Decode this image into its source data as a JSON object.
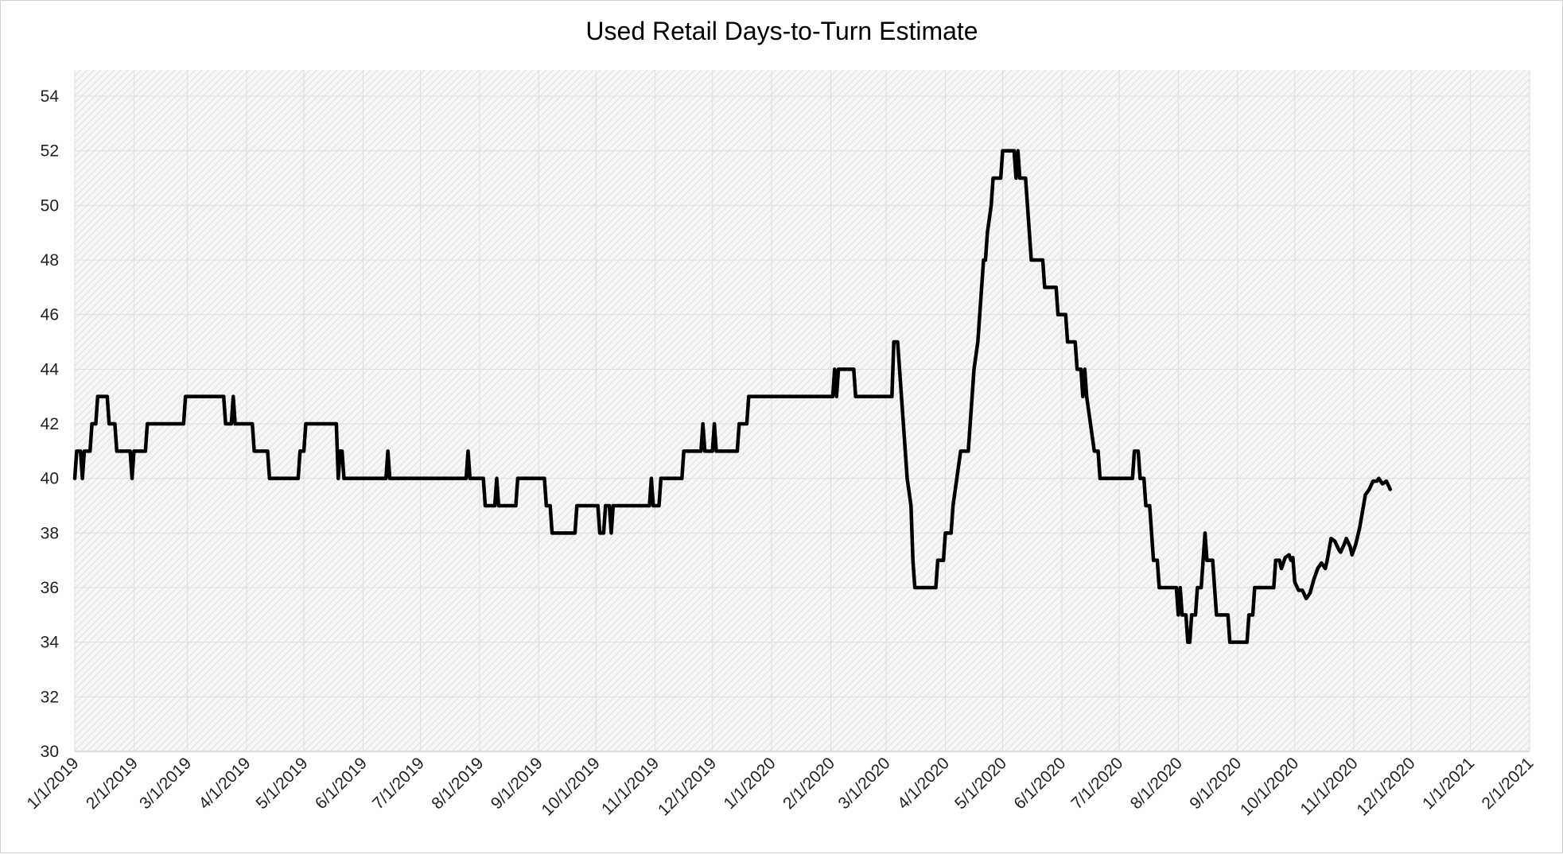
{
  "chart_data": {
    "type": "line",
    "title": "Used Retail Days-to-Turn Estimate",
    "xlabel": "",
    "ylabel": "",
    "ylim": [
      30,
      54
    ],
    "yticks": [
      30,
      32,
      34,
      36,
      38,
      40,
      42,
      44,
      46,
      48,
      50,
      52,
      54
    ],
    "grid": true,
    "legend": "none",
    "line_color": "#000000",
    "x_tick_labels": [
      "1/1/2019",
      "2/1/2019",
      "3/1/2019",
      "4/1/2019",
      "5/1/2019",
      "6/1/2019",
      "7/1/2019",
      "8/1/2019",
      "9/1/2019",
      "10/1/2019",
      "11/1/2019",
      "12/1/2019",
      "1/1/2020",
      "2/1/2020",
      "3/1/2020",
      "4/1/2020",
      "5/1/2020",
      "6/1/2020",
      "7/1/2020",
      "8/1/2020",
      "9/1/2020",
      "10/1/2020",
      "11/1/2020",
      "12/1/2020",
      "1/1/2021",
      "2/1/2021"
    ],
    "x_tick_dates": [
      "2019-01-01",
      "2019-02-01",
      "2019-03-01",
      "2019-04-01",
      "2019-05-01",
      "2019-06-01",
      "2019-07-01",
      "2019-08-01",
      "2019-09-01",
      "2019-10-01",
      "2019-11-01",
      "2019-12-01",
      "2020-01-01",
      "2020-02-01",
      "2020-03-01",
      "2020-04-01",
      "2020-05-01",
      "2020-06-01",
      "2020-07-01",
      "2020-08-01",
      "2020-09-01",
      "2020-10-01",
      "2020-11-01",
      "2020-12-01",
      "2021-01-01",
      "2021-02-01"
    ],
    "xlim": [
      "2019-01-01",
      "2021-02-01"
    ],
    "series": [
      {
        "points": [
          [
            "2019-01-01",
            40
          ],
          [
            "2019-01-02",
            41
          ],
          [
            "2019-01-04",
            41
          ],
          [
            "2019-01-05",
            40
          ],
          [
            "2019-01-06",
            41
          ],
          [
            "2019-01-09",
            41
          ],
          [
            "2019-01-10",
            42
          ],
          [
            "2019-01-12",
            42
          ],
          [
            "2019-01-13",
            43
          ],
          [
            "2019-01-18",
            43
          ],
          [
            "2019-01-19",
            42
          ],
          [
            "2019-01-22",
            42
          ],
          [
            "2019-01-23",
            41
          ],
          [
            "2019-01-30",
            41
          ],
          [
            "2019-01-31",
            40
          ],
          [
            "2019-02-01",
            41
          ],
          [
            "2019-02-07",
            41
          ],
          [
            "2019-02-08",
            42
          ],
          [
            "2019-02-27",
            42
          ],
          [
            "2019-02-28",
            43
          ],
          [
            "2019-03-20",
            43
          ],
          [
            "2019-03-21",
            42
          ],
          [
            "2019-03-24",
            42
          ],
          [
            "2019-03-25",
            43
          ],
          [
            "2019-03-26",
            42
          ],
          [
            "2019-04-04",
            42
          ],
          [
            "2019-04-05",
            41
          ],
          [
            "2019-04-12",
            41
          ],
          [
            "2019-04-13",
            40
          ],
          [
            "2019-04-28",
            40
          ],
          [
            "2019-04-29",
            41
          ],
          [
            "2019-05-01",
            41
          ],
          [
            "2019-05-02",
            42
          ],
          [
            "2019-05-18",
            42
          ],
          [
            "2019-05-19",
            40
          ],
          [
            "2019-05-20",
            41
          ],
          [
            "2019-05-21",
            41
          ],
          [
            "2019-05-22",
            40
          ],
          [
            "2019-06-13",
            40
          ],
          [
            "2019-06-14",
            41
          ],
          [
            "2019-06-15",
            40
          ],
          [
            "2019-07-25",
            40
          ],
          [
            "2019-07-26",
            41
          ],
          [
            "2019-07-27",
            40
          ],
          [
            "2019-08-03",
            40
          ],
          [
            "2019-08-04",
            39
          ],
          [
            "2019-08-09",
            39
          ],
          [
            "2019-08-10",
            40
          ],
          [
            "2019-08-11",
            39
          ],
          [
            "2019-08-20",
            39
          ],
          [
            "2019-08-21",
            40
          ],
          [
            "2019-09-04",
            40
          ],
          [
            "2019-09-05",
            39
          ],
          [
            "2019-09-07",
            39
          ],
          [
            "2019-09-08",
            38
          ],
          [
            "2019-09-20",
            38
          ],
          [
            "2019-09-21",
            39
          ],
          [
            "2019-10-02",
            39
          ],
          [
            "2019-10-03",
            38
          ],
          [
            "2019-10-05",
            38
          ],
          [
            "2019-10-06",
            39
          ],
          [
            "2019-10-08",
            39
          ],
          [
            "2019-10-09",
            38
          ],
          [
            "2019-10-10",
            39
          ],
          [
            "2019-10-29",
            39
          ],
          [
            "2019-10-30",
            40
          ],
          [
            "2019-10-31",
            39
          ],
          [
            "2019-11-03",
            39
          ],
          [
            "2019-11-04",
            40
          ],
          [
            "2019-11-15",
            40
          ],
          [
            "2019-11-16",
            41
          ],
          [
            "2019-11-25",
            41
          ],
          [
            "2019-11-26",
            42
          ],
          [
            "2019-11-27",
            41
          ],
          [
            "2019-12-01",
            41
          ],
          [
            "2019-12-02",
            42
          ],
          [
            "2019-12-03",
            41
          ],
          [
            "2019-12-14",
            41
          ],
          [
            "2019-12-15",
            42
          ],
          [
            "2019-12-19",
            42
          ],
          [
            "2019-12-20",
            43
          ],
          [
            "2020-02-02",
            43
          ],
          [
            "2020-02-03",
            44
          ],
          [
            "2020-02-04",
            43
          ],
          [
            "2020-02-05",
            44
          ],
          [
            "2020-02-13",
            44
          ],
          [
            "2020-02-14",
            43
          ],
          [
            "2020-03-04",
            43
          ],
          [
            "2020-03-05",
            45
          ],
          [
            "2020-03-07",
            45
          ],
          [
            "2020-03-08",
            44
          ],
          [
            "2020-03-09",
            43
          ],
          [
            "2020-03-10",
            42
          ],
          [
            "2020-03-11",
            41
          ],
          [
            "2020-03-12",
            40
          ],
          [
            "2020-03-14",
            39
          ],
          [
            "2020-03-15",
            37
          ],
          [
            "2020-03-16",
            36
          ],
          [
            "2020-03-27",
            36
          ],
          [
            "2020-03-28",
            37
          ],
          [
            "2020-03-31",
            37
          ],
          [
            "2020-04-01",
            38
          ],
          [
            "2020-04-04",
            38
          ],
          [
            "2020-04-05",
            39
          ],
          [
            "2020-04-07",
            40
          ],
          [
            "2020-04-09",
            41
          ],
          [
            "2020-04-13",
            41
          ],
          [
            "2020-04-14",
            42
          ],
          [
            "2020-04-15",
            43
          ],
          [
            "2020-04-16",
            44
          ],
          [
            "2020-04-18",
            45
          ],
          [
            "2020-04-19",
            46
          ],
          [
            "2020-04-21",
            48
          ],
          [
            "2020-04-22",
            48
          ],
          [
            "2020-04-23",
            49
          ],
          [
            "2020-04-25",
            50
          ],
          [
            "2020-04-26",
            51
          ],
          [
            "2020-04-30",
            51
          ],
          [
            "2020-05-01",
            52
          ],
          [
            "2020-05-07",
            52
          ],
          [
            "2020-05-08",
            51
          ],
          [
            "2020-05-09",
            52
          ],
          [
            "2020-05-10",
            51
          ],
          [
            "2020-05-13",
            51
          ],
          [
            "2020-05-14",
            50
          ],
          [
            "2020-05-15",
            49
          ],
          [
            "2020-05-16",
            48
          ],
          [
            "2020-05-22",
            48
          ],
          [
            "2020-05-23",
            47
          ],
          [
            "2020-05-29",
            47
          ],
          [
            "2020-05-30",
            46
          ],
          [
            "2020-06-03",
            46
          ],
          [
            "2020-06-04",
            45
          ],
          [
            "2020-06-08",
            45
          ],
          [
            "2020-06-09",
            44
          ],
          [
            "2020-06-11",
            44
          ],
          [
            "2020-06-12",
            43
          ],
          [
            "2020-06-13",
            44
          ],
          [
            "2020-06-14",
            43
          ],
          [
            "2020-06-16",
            42
          ],
          [
            "2020-06-18",
            41
          ],
          [
            "2020-06-20",
            41
          ],
          [
            "2020-06-21",
            40
          ],
          [
            "2020-07-08",
            40
          ],
          [
            "2020-07-09",
            41
          ],
          [
            "2020-07-11",
            41
          ],
          [
            "2020-07-12",
            40
          ],
          [
            "2020-07-14",
            40
          ],
          [
            "2020-07-15",
            39
          ],
          [
            "2020-07-17",
            39
          ],
          [
            "2020-07-18",
            38
          ],
          [
            "2020-07-19",
            37
          ],
          [
            "2020-07-21",
            37
          ],
          [
            "2020-07-22",
            36
          ],
          [
            "2020-07-31",
            36
          ],
          [
            "2020-08-01",
            35
          ],
          [
            "2020-08-02",
            36
          ],
          [
            "2020-08-03",
            35
          ],
          [
            "2020-08-05",
            35
          ],
          [
            "2020-08-06",
            34
          ],
          [
            "2020-08-07",
            34
          ],
          [
            "2020-08-08",
            35
          ],
          [
            "2020-08-10",
            35
          ],
          [
            "2020-08-11",
            36
          ],
          [
            "2020-08-13",
            36
          ],
          [
            "2020-08-14",
            37
          ],
          [
            "2020-08-15",
            38
          ],
          [
            "2020-08-16",
            37
          ],
          [
            "2020-08-19",
            37
          ],
          [
            "2020-08-20",
            36
          ],
          [
            "2020-08-21",
            35
          ],
          [
            "2020-08-27",
            35
          ],
          [
            "2020-08-28",
            34
          ],
          [
            "2020-09-06",
            34
          ],
          [
            "2020-09-07",
            35
          ],
          [
            "2020-09-09",
            35
          ],
          [
            "2020-09-10",
            36
          ],
          [
            "2020-09-20",
            36
          ],
          [
            "2020-09-21",
            37
          ],
          [
            "2020-09-23",
            37
          ],
          [
            "2020-09-24",
            36.7
          ],
          [
            "2020-09-26",
            37.1
          ],
          [
            "2020-09-28",
            37.2
          ],
          [
            "2020-09-29",
            37
          ],
          [
            "2020-09-30",
            37.1
          ],
          [
            "2020-10-01",
            36.2
          ],
          [
            "2020-10-03",
            35.9
          ],
          [
            "2020-10-05",
            35.9
          ],
          [
            "2020-10-07",
            35.6
          ],
          [
            "2020-10-09",
            35.8
          ],
          [
            "2020-10-11",
            36.3
          ],
          [
            "2020-10-13",
            36.7
          ],
          [
            "2020-10-15",
            36.9
          ],
          [
            "2020-10-17",
            36.7
          ],
          [
            "2020-10-18",
            37
          ],
          [
            "2020-10-20",
            37.8
          ],
          [
            "2020-10-22",
            37.7
          ],
          [
            "2020-10-24",
            37.4
          ],
          [
            "2020-10-25",
            37.3
          ],
          [
            "2020-10-27",
            37.6
          ],
          [
            "2020-10-28",
            37.8
          ],
          [
            "2020-10-30",
            37.5
          ],
          [
            "2020-10-31",
            37.2
          ],
          [
            "2020-11-02",
            37.6
          ],
          [
            "2020-11-04",
            38.2
          ],
          [
            "2020-11-06",
            39
          ],
          [
            "2020-11-07",
            39.4
          ],
          [
            "2020-11-09",
            39.6
          ],
          [
            "2020-11-11",
            39.9
          ],
          [
            "2020-11-13",
            39.9
          ],
          [
            "2020-11-14",
            40
          ],
          [
            "2020-11-16",
            39.8
          ],
          [
            "2020-11-18",
            39.9
          ],
          [
            "2020-11-20",
            39.6
          ]
        ]
      }
    ]
  }
}
